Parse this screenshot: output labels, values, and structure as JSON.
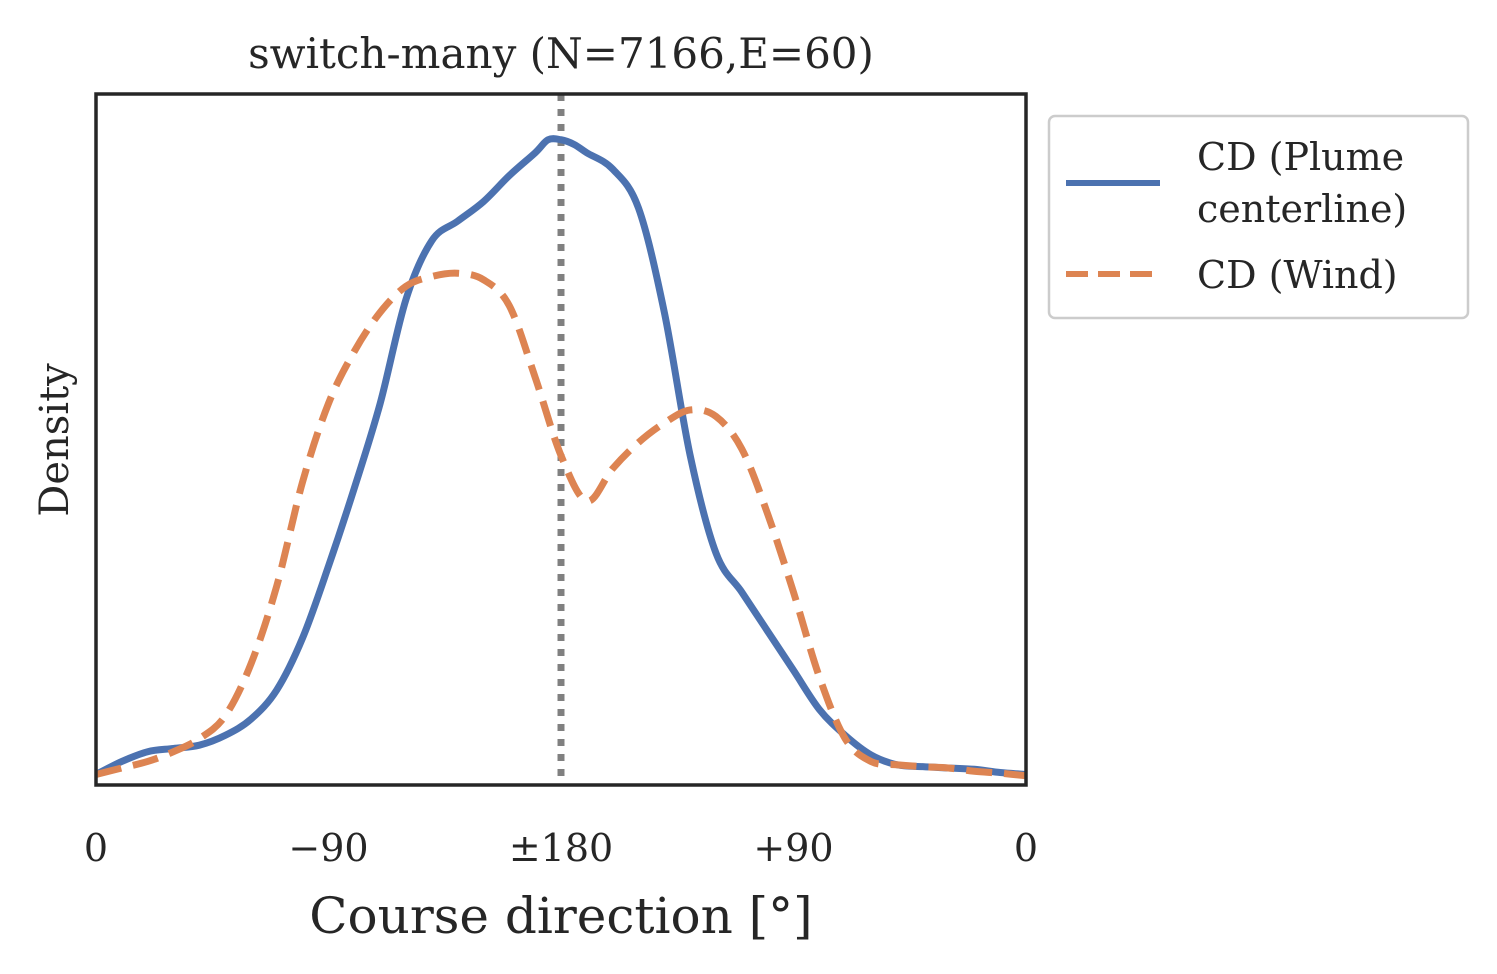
{
  "chart_data": {
    "type": "line",
    "title": "switch-many (N=7166,E=60)",
    "xlabel": "Course direction [°]",
    "ylabel": "Density",
    "x_ticks": [
      "0",
      "−90",
      "±180",
      "+90",
      "0"
    ],
    "x_tick_positions": [
      0,
      90,
      180,
      270,
      360
    ],
    "xlim": [
      0,
      360
    ],
    "ylim": [
      0,
      1.0
    ],
    "reference_line": {
      "x": 180,
      "style": "dotted",
      "color": "#808080"
    },
    "series": [
      {
        "name": "CD (Plume centerline)",
        "legend_lines": [
          "CD (Plume",
          "centerline)"
        ],
        "color": "#4c72b0",
        "style": "solid",
        "x": [
          0,
          10,
          20,
          30,
          40,
          50,
          60,
          70,
          80,
          90,
          100,
          110,
          120,
          130,
          140,
          150,
          160,
          170,
          175,
          180,
          185,
          190,
          200,
          210,
          220,
          230,
          240,
          250,
          260,
          270,
          280,
          290,
          300,
          310,
          320,
          330,
          340,
          350,
          360
        ],
        "values": [
          0.01,
          0.03,
          0.045,
          0.05,
          0.055,
          0.07,
          0.095,
          0.14,
          0.22,
          0.33,
          0.45,
          0.58,
          0.74,
          0.83,
          0.86,
          0.89,
          0.93,
          0.965,
          0.985,
          0.985,
          0.978,
          0.965,
          0.94,
          0.88,
          0.72,
          0.5,
          0.35,
          0.29,
          0.23,
          0.17,
          0.11,
          0.07,
          0.04,
          0.025,
          0.022,
          0.02,
          0.018,
          0.013,
          0.01
        ]
      },
      {
        "name": "CD (Wind)",
        "legend_lines": [
          "CD (Wind)"
        ],
        "color": "#dd8452",
        "style": "dashed",
        "x": [
          0,
          10,
          20,
          30,
          40,
          50,
          60,
          70,
          80,
          90,
          100,
          110,
          120,
          130,
          140,
          150,
          160,
          170,
          180,
          190,
          200,
          210,
          220,
          230,
          240,
          250,
          260,
          270,
          280,
          290,
          300,
          310,
          320,
          330,
          340,
          350,
          360
        ],
        "values": [
          0.01,
          0.02,
          0.03,
          0.045,
          0.065,
          0.1,
          0.18,
          0.3,
          0.46,
          0.58,
          0.66,
          0.72,
          0.76,
          0.775,
          0.78,
          0.77,
          0.73,
          0.62,
          0.5,
          0.43,
          0.48,
          0.52,
          0.55,
          0.57,
          0.56,
          0.51,
          0.41,
          0.29,
          0.16,
          0.065,
          0.03,
          0.025,
          0.022,
          0.02,
          0.015,
          0.012,
          0.008
        ]
      }
    ],
    "legend_position": "outside-right-top"
  }
}
